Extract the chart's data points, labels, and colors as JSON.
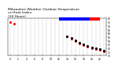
{
  "title": "Milwaukee Weather Outdoor Temperature\nvs Heat Index\n(24 Hours)",
  "title_fontsize": 3.2,
  "title_color": "#000000",
  "background_color": "#ffffff",
  "grid_color": "#aaaaaa",
  "hours": [
    0,
    1,
    2,
    3,
    4,
    5,
    6,
    7,
    8,
    9,
    10,
    11,
    12,
    13,
    14,
    15,
    16,
    17,
    18,
    19,
    20,
    21,
    22,
    23
  ],
  "temp": [
    75,
    72,
    null,
    null,
    null,
    null,
    null,
    null,
    null,
    null,
    null,
    null,
    null,
    null,
    55,
    52,
    49,
    46,
    44,
    42,
    40,
    38,
    37,
    35
  ],
  "heat_index": [
    null,
    null,
    null,
    null,
    null,
    null,
    null,
    null,
    null,
    null,
    null,
    null,
    null,
    null,
    55,
    53,
    50,
    47,
    45,
    43,
    41,
    39,
    38,
    36
  ],
  "temp_color": "#ff0000",
  "heat_color": "#000000",
  "ylim": [
    30,
    80
  ],
  "xlim": [
    -0.5,
    23.5
  ],
  "ytick_values": [
    30,
    35,
    40,
    45,
    50,
    55,
    60,
    65,
    70,
    75,
    80
  ],
  "legend_heat_color": "#0000ff",
  "legend_temp_color": "#ff0000",
  "dot_size": 1.2
}
